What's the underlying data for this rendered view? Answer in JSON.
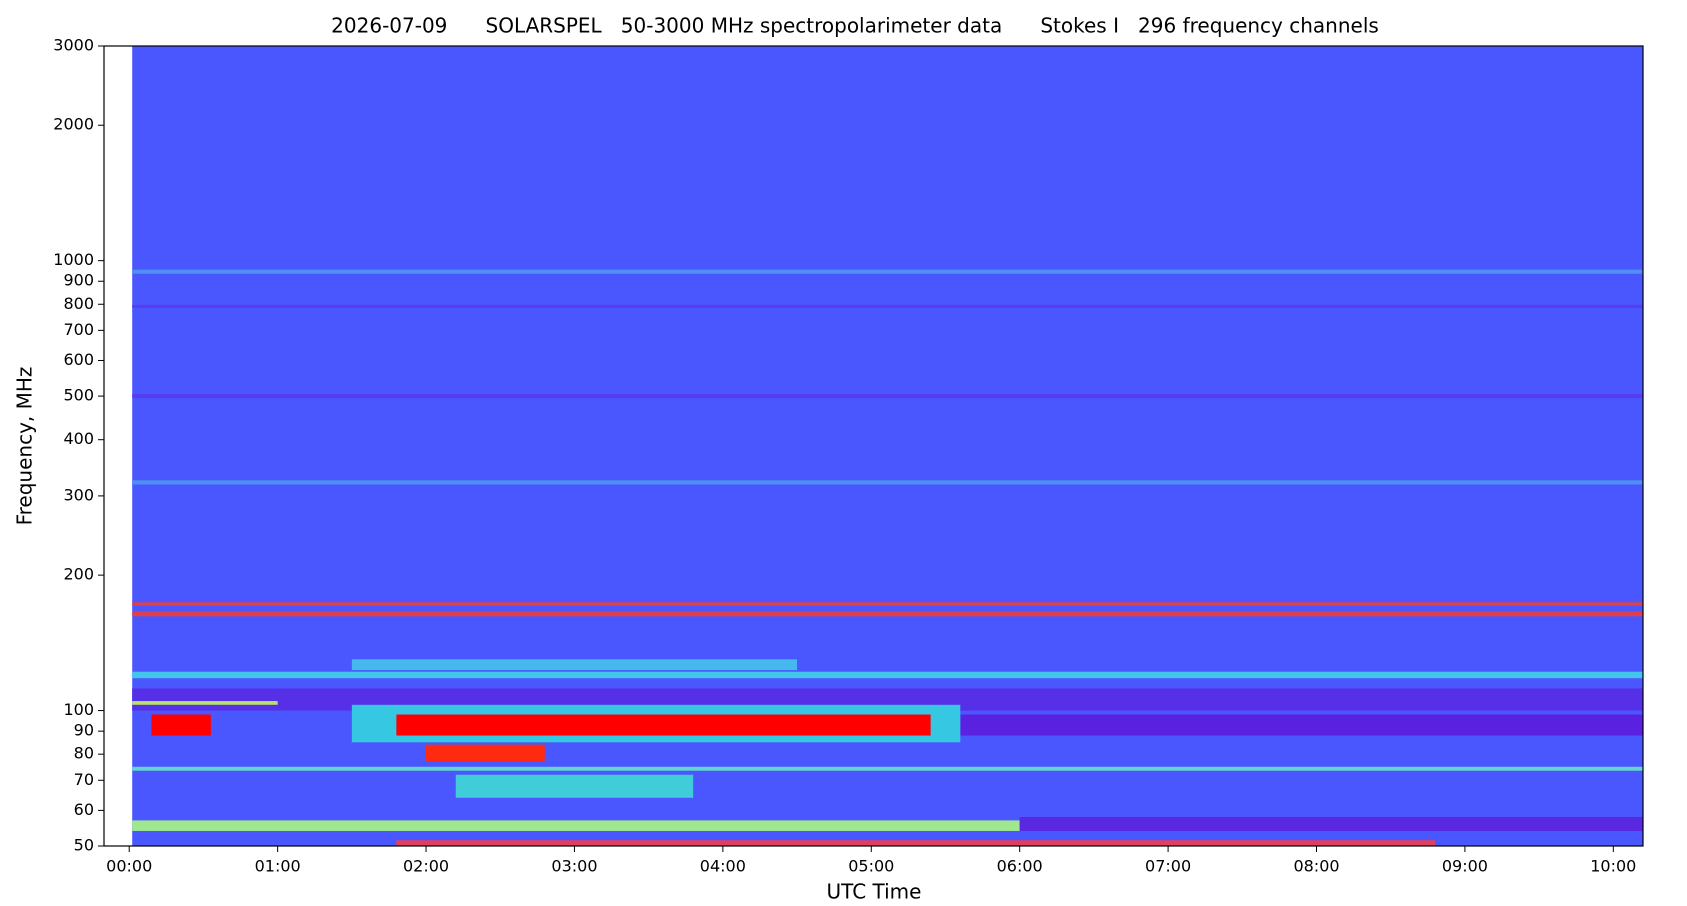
{
  "chart_data": {
    "type": "spectrogram",
    "title": "2026-07-09      SOLARSPEL   50-3000 MHz spectropolarimeter data      Stokes I   296 frequency channels",
    "xlabel": "UTC Time",
    "ylabel": "Frequency, MHz",
    "yscale": "log",
    "xlim": [
      -0.17,
      10.2
    ],
    "ylim": [
      50,
      3000
    ],
    "xticks": [
      {
        "value": 0,
        "label": "00:00"
      },
      {
        "value": 1,
        "label": "01:00"
      },
      {
        "value": 2,
        "label": "02:00"
      },
      {
        "value": 3,
        "label": "03:00"
      },
      {
        "value": 4,
        "label": "04:00"
      },
      {
        "value": 5,
        "label": "05:00"
      },
      {
        "value": 6,
        "label": "06:00"
      },
      {
        "value": 7,
        "label": "07:00"
      },
      {
        "value": 8,
        "label": "08:00"
      },
      {
        "value": 9,
        "label": "09:00"
      },
      {
        "value": 10,
        "label": "10:00"
      }
    ],
    "yticks": [
      50,
      60,
      70,
      80,
      90,
      100,
      200,
      300,
      400,
      500,
      600,
      700,
      800,
      900,
      1000,
      2000,
      3000
    ],
    "regions": [
      {
        "x": [
          0.02,
          10.2
        ],
        "y": [
          50,
          3000
        ],
        "color": "#4a56fe"
      },
      {
        "x": [
          0.02,
          10.2
        ],
        "y": [
          935,
          955
        ],
        "color": "#4f8ef2"
      },
      {
        "x": [
          0.02,
          10.2
        ],
        "y": [
          785,
          797
        ],
        "color": "#5a3cf0"
      },
      {
        "x": [
          0.02,
          10.2
        ],
        "y": [
          495,
          505
        ],
        "color": "#5a3cf0"
      },
      {
        "x": [
          0.02,
          10.2
        ],
        "y": [
          318,
          325
        ],
        "color": "#4f8ef2"
      },
      {
        "x": [
          0.02,
          10.2
        ],
        "y": [
          171,
          174
        ],
        "color": "#e0404c"
      },
      {
        "x": [
          0.02,
          10.2
        ],
        "y": [
          162,
          166
        ],
        "color": "#e0404c"
      },
      {
        "x": [
          1.5,
          4.5
        ],
        "y": [
          123,
          130
        ],
        "color": "#45b8ee"
      },
      {
        "x": [
          0.02,
          10.2
        ],
        "y": [
          118,
          122
        ],
        "color": "#43c4ec"
      },
      {
        "x": [
          0.02,
          10.2
        ],
        "y": [
          100,
          112
        ],
        "color": "#5530e6"
      },
      {
        "x": [
          0.02,
          1.0
        ],
        "y": [
          103,
          105
        ],
        "color": "#b8e070"
      },
      {
        "x": [
          5.6,
          10.2
        ],
        "y": [
          88,
          98
        ],
        "color": "#5a22e0"
      },
      {
        "x": [
          1.5,
          5.6
        ],
        "y": [
          85,
          103
        ],
        "color": "#36c8e2"
      },
      {
        "x": [
          0.15,
          0.55
        ],
        "y": [
          88,
          98
        ],
        "color": "#ff0000"
      },
      {
        "x": [
          1.8,
          5.4
        ],
        "y": [
          88,
          98
        ],
        "color": "#ff0000"
      },
      {
        "x": [
          2.0,
          2.8
        ],
        "y": [
          77,
          84
        ],
        "color": "#ff2a10"
      },
      {
        "x": [
          0.02,
          10.2
        ],
        "y": [
          73.5,
          75
        ],
        "color": "#62d6d0"
      },
      {
        "x": [
          2.2,
          3.8
        ],
        "y": [
          64,
          72
        ],
        "color": "#40ccd8"
      },
      {
        "x": [
          0.02,
          6.0
        ],
        "y": [
          54,
          57
        ],
        "color": "#a0e890"
      },
      {
        "x": [
          6.0,
          10.2
        ],
        "y": [
          54,
          58
        ],
        "color": "#5a28e0"
      },
      {
        "x": [
          1.8,
          8.8
        ],
        "y": [
          50,
          51.5
        ],
        "color": "#e04060"
      }
    ]
  }
}
